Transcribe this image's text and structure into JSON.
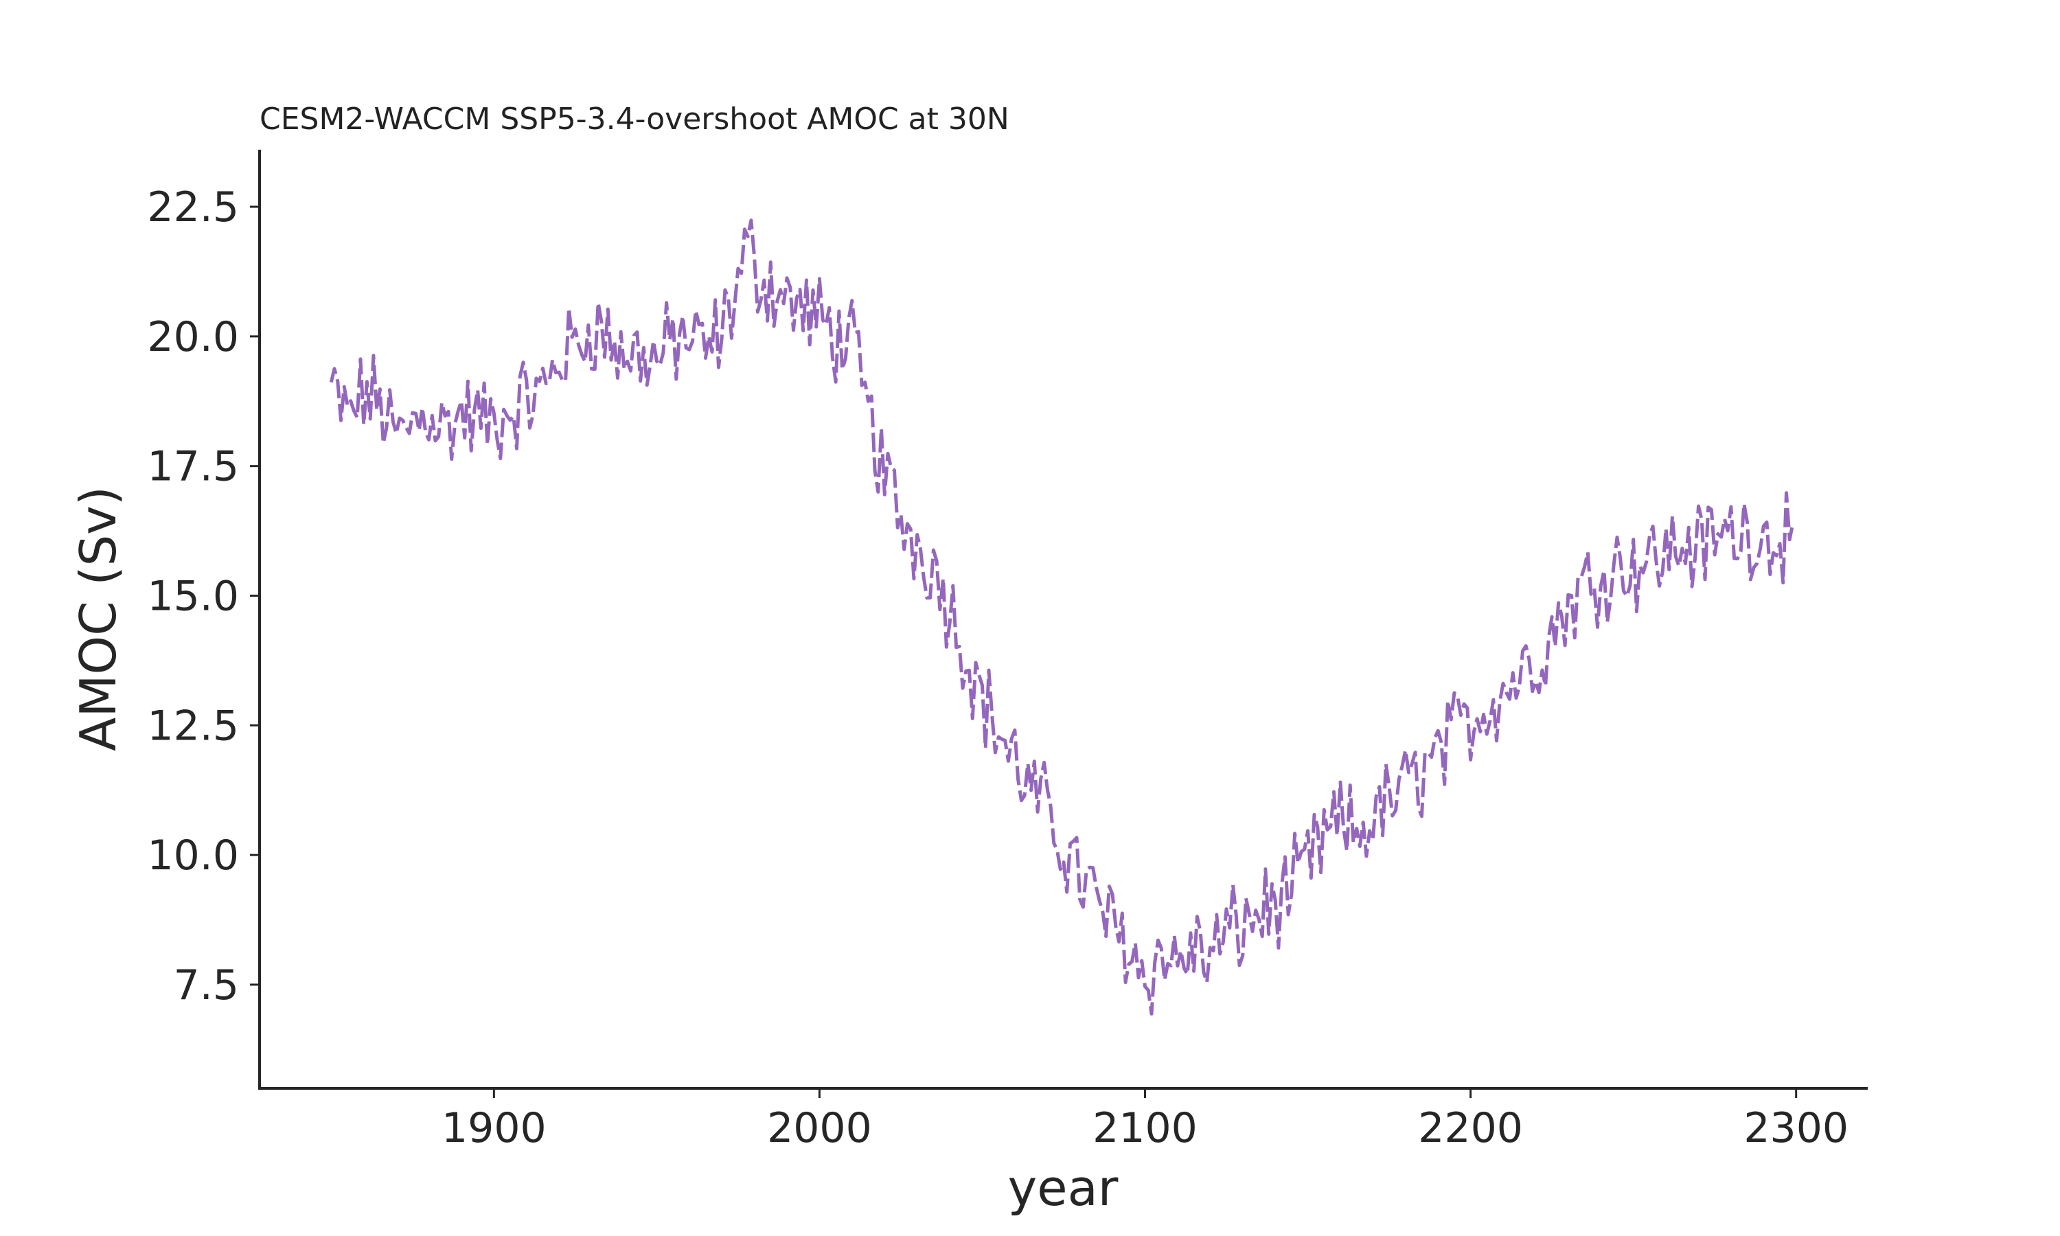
{
  "chart_data": {
    "type": "line",
    "title": "CESM2-WACCM SSP5-3.4-overshoot AMOC at 30N",
    "xlabel": "year",
    "ylabel": "AMOC (Sv)",
    "xlim": [
      1828,
      2322
    ],
    "ylim": [
      5.5,
      23.6
    ],
    "x_ticks": [
      1900,
      2000,
      2100,
      2200,
      2300
    ],
    "x_tick_labels": [
      "1900",
      "2000",
      "2100",
      "2200",
      "2300"
    ],
    "y_ticks": [
      7.5,
      10.0,
      12.5,
      15.0,
      17.5,
      20.0,
      22.5
    ],
    "y_tick_labels": [
      "7.5",
      "10.0",
      "12.5",
      "15.0",
      "17.5",
      "20.0",
      "22.5"
    ],
    "grid": false,
    "series": [
      {
        "color": "#9467bd",
        "line_style": "dashed",
        "x": [
          1850,
          1855,
          1860,
          1865,
          1870,
          1875,
          1880,
          1885,
          1890,
          1895,
          1900,
          1905,
          1910,
          1915,
          1920,
          1925,
          1930,
          1935,
          1940,
          1945,
          1950,
          1955,
          1960,
          1965,
          1970,
          1975,
          1978,
          1980,
          1985,
          1990,
          1995,
          2000,
          2005,
          2010,
          2015,
          2020,
          2025,
          2030,
          2035,
          2040,
          2045,
          2050,
          2055,
          2060,
          2065,
          2070,
          2075,
          2080,
          2085,
          2090,
          2095,
          2100,
          2105,
          2110,
          2115,
          2120,
          2125,
          2130,
          2135,
          2140,
          2145,
          2150,
          2155,
          2160,
          2165,
          2170,
          2175,
          2180,
          2185,
          2190,
          2195,
          2200,
          2205,
          2210,
          2215,
          2220,
          2225,
          2230,
          2235,
          2240,
          2245,
          2250,
          2255,
          2260,
          2265,
          2270,
          2275,
          2280,
          2285,
          2290,
          2295,
          2299
        ],
        "y": [
          19.0,
          18.4,
          18.9,
          18.7,
          18.0,
          18.3,
          18.6,
          18.2,
          18.5,
          18.4,
          18.3,
          18.6,
          18.8,
          18.9,
          19.6,
          19.8,
          20.2,
          20.0,
          19.6,
          19.7,
          19.5,
          19.9,
          20.0,
          19.7,
          20.1,
          21.0,
          21.8,
          21.3,
          21.0,
          20.7,
          20.5,
          20.3,
          20.0,
          19.8,
          18.5,
          17.3,
          16.5,
          16.0,
          15.6,
          14.8,
          13.9,
          13.0,
          12.4,
          11.8,
          11.2,
          10.8,
          10.2,
          9.6,
          9.1,
          8.6,
          8.3,
          7.6,
          8.1,
          7.9,
          8.2,
          8.0,
          8.5,
          8.6,
          8.9,
          9.0,
          9.3,
          9.8,
          10.3,
          10.6,
          10.4,
          10.7,
          11.0,
          11.3,
          11.6,
          11.9,
          12.3,
          12.6,
          12.9,
          13.2,
          13.5,
          13.8,
          14.3,
          14.8,
          15.2,
          15.4,
          15.6,
          15.6,
          15.7,
          15.8,
          16.0,
          15.9,
          16.1,
          16.2,
          16.3,
          16.1,
          16.2,
          16.4
        ]
      }
    ]
  }
}
